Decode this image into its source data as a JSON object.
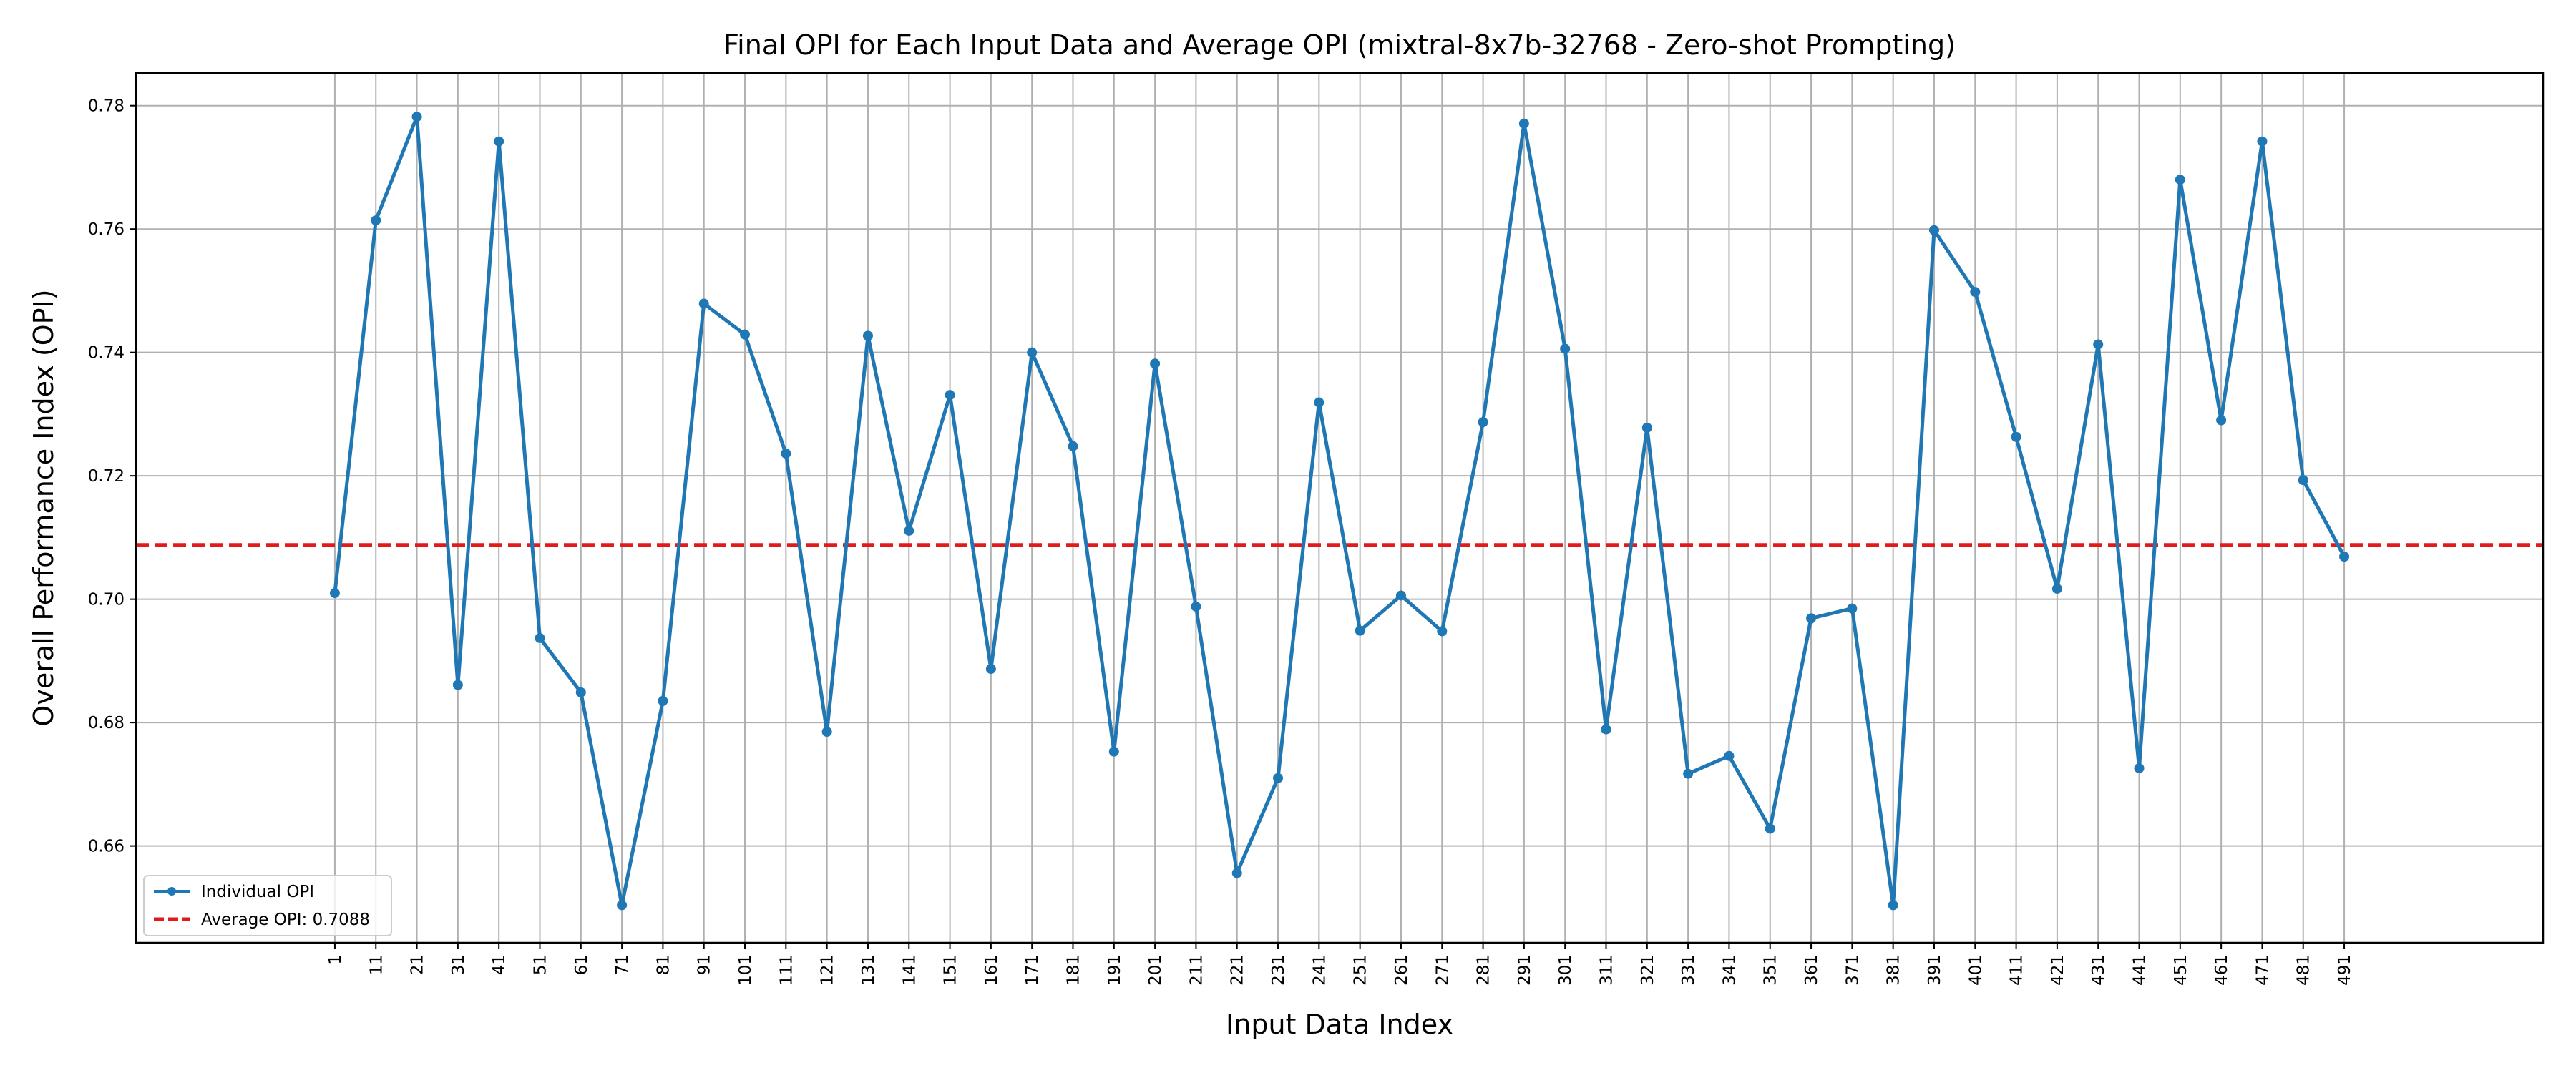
{
  "chart_data": {
    "type": "line",
    "title": "Final OPI for Each Input Data and Average OPI (mixtral-8x7b-32768 - Zero-shot Prompting)",
    "xlabel": "Input Data Index",
    "ylabel": "Overall Performance Index (OPI)",
    "x": [
      1,
      11,
      21,
      31,
      41,
      51,
      61,
      71,
      81,
      91,
      101,
      111,
      121,
      131,
      141,
      151,
      161,
      171,
      181,
      191,
      201,
      211,
      221,
      231,
      241,
      251,
      261,
      271,
      281,
      291,
      301,
      311,
      321,
      331,
      341,
      351,
      361,
      371,
      381,
      391,
      401,
      411,
      421,
      431,
      441,
      451,
      461,
      471,
      481,
      491
    ],
    "x_tick_labels": [
      "1",
      "11",
      "21",
      "31",
      "41",
      "51",
      "61",
      "71",
      "81",
      "91",
      "101",
      "111",
      "121",
      "131",
      "141",
      "151",
      "161",
      "171",
      "181",
      "191",
      "201",
      "211",
      "221",
      "231",
      "241",
      "251",
      "261",
      "271",
      "281",
      "291",
      "301",
      "311",
      "321",
      "331",
      "341",
      "351",
      "361",
      "371",
      "381",
      "391",
      "401",
      "411",
      "421",
      "431",
      "441",
      "451",
      "461",
      "471",
      "481",
      "491"
    ],
    "y_ticks": [
      0.66,
      0.68,
      0.7,
      0.72,
      0.74,
      0.76,
      0.78
    ],
    "y_tick_labels": [
      "0.66",
      "0.68",
      "0.70",
      "0.72",
      "0.74",
      "0.76",
      "0.78"
    ],
    "ylim": [
      0.6443,
      0.7853
    ],
    "xlim": [
      -47.5,
      539.5
    ],
    "grid": true,
    "legend_position": "lower-left",
    "series": [
      {
        "name": "Individual OPI",
        "color": "#1f77b4",
        "marker": "circle",
        "values": [
          0.701,
          0.7614,
          0.7782,
          0.6861,
          0.7742,
          0.6937,
          0.6849,
          0.6504,
          0.6835,
          0.7479,
          0.7429,
          0.7236,
          0.6785,
          0.7427,
          0.7111,
          0.7331,
          0.6887,
          0.74,
          0.7248,
          0.6753,
          0.7382,
          0.6988,
          0.6556,
          0.671,
          0.7319,
          0.6949,
          0.7006,
          0.6948,
          0.7287,
          0.7771,
          0.7406,
          0.6789,
          0.7278,
          0.6717,
          0.6746,
          0.6628,
          0.6969,
          0.6985,
          0.6504,
          0.7598,
          0.7498,
          0.7263,
          0.7017,
          0.7413,
          0.6726,
          0.768,
          0.729,
          0.7742,
          0.7193,
          0.7069
        ]
      }
    ],
    "average": {
      "name": "Average OPI: 0.7088",
      "value": 0.7088,
      "color": "#e31a1c",
      "style": "dashed"
    }
  }
}
